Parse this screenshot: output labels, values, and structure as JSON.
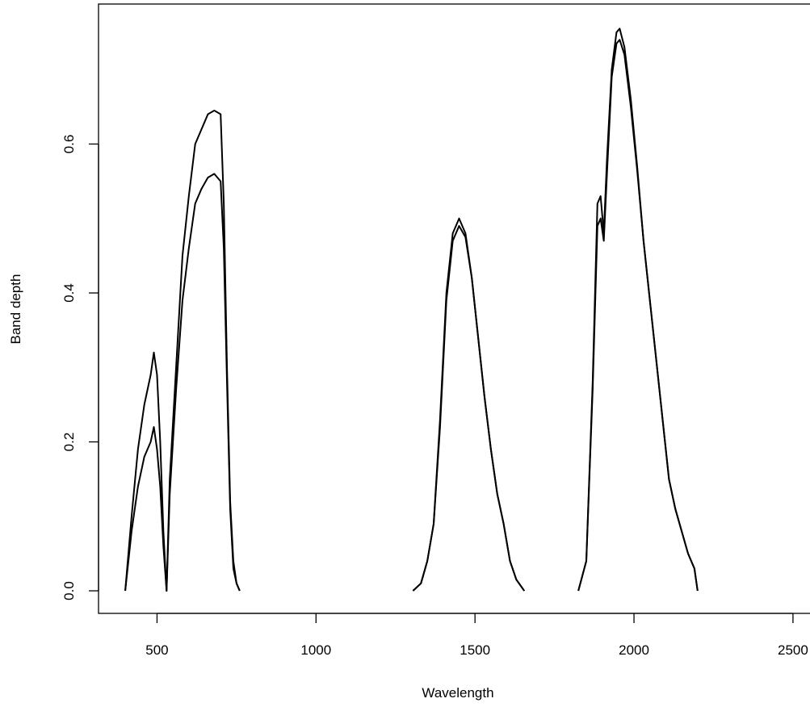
{
  "chart_data": {
    "type": "line",
    "x_label": "Wavelength",
    "y_label": "Band depth",
    "x": [
      400,
      420,
      440,
      460,
      480,
      490,
      500,
      510,
      520,
      530,
      540,
      560,
      580,
      600,
      620,
      640,
      660,
      680,
      700,
      710,
      720,
      730,
      740,
      750,
      760,
      null,
      1305,
      1330,
      1350,
      1370,
      1390,
      1410,
      1430,
      1450,
      1470,
      1490,
      1510,
      1530,
      1550,
      1570,
      1590,
      1610,
      1630,
      1655,
      null,
      1825,
      1850,
      1870,
      1885,
      1895,
      1905,
      1915,
      1930,
      1945,
      1955,
      1970,
      1990,
      2010,
      2030,
      2050,
      2070,
      2090,
      2110,
      2130,
      2150,
      2170,
      2190,
      2200
    ],
    "series": [
      {
        "color": "#000000",
        "values": [
          0,
          0.1,
          0.19,
          0.25,
          0.29,
          0.32,
          0.29,
          0.2,
          0.08,
          0,
          0.15,
          0.3,
          0.45,
          0.53,
          0.6,
          0.62,
          0.64,
          0.645,
          0.64,
          0.52,
          0.3,
          0.12,
          0.04,
          0.01,
          0,
          null,
          0,
          0.01,
          0.04,
          0.09,
          0.23,
          0.4,
          0.48,
          0.5,
          0.48,
          0.42,
          0.34,
          0.26,
          0.19,
          0.13,
          0.09,
          0.04,
          0.015,
          0,
          null,
          0,
          0.04,
          0.28,
          0.52,
          0.53,
          0.48,
          0.58,
          0.7,
          0.75,
          0.755,
          0.73,
          0.66,
          0.57,
          0.47,
          0.39,
          0.31,
          0.23,
          0.15,
          0.11,
          0.08,
          0.05,
          0.03,
          0
        ]
      },
      {
        "color": "#000000",
        "values": [
          0,
          0.08,
          0.14,
          0.18,
          0.2,
          0.22,
          0.19,
          0.14,
          0.06,
          0,
          0.13,
          0.27,
          0.39,
          0.46,
          0.52,
          0.54,
          0.555,
          0.56,
          0.55,
          0.46,
          0.28,
          0.11,
          0.03,
          0.01,
          0,
          null,
          0,
          0.01,
          0.04,
          0.09,
          0.22,
          0.39,
          0.47,
          0.49,
          0.475,
          0.42,
          0.34,
          0.26,
          0.19,
          0.13,
          0.09,
          0.04,
          0.015,
          0,
          null,
          0,
          0.04,
          0.27,
          0.49,
          0.5,
          0.47,
          0.56,
          0.69,
          0.735,
          0.74,
          0.72,
          0.65,
          0.565,
          0.47,
          0.39,
          0.31,
          0.23,
          0.15,
          0.11,
          0.08,
          0.05,
          0.03,
          0
        ]
      }
    ],
    "xlim": [
      316,
      2584
    ],
    "ylim": [
      -0.0303,
      0.788
    ],
    "xticks": [
      500,
      1000,
      1500,
      2000,
      2500
    ],
    "yticks": [
      {
        "value": 0,
        "label": "0.0"
      },
      {
        "value": 0.2,
        "label": "0.2"
      },
      {
        "value": 0.4,
        "label": "0.4"
      },
      {
        "value": 0.6,
        "label": "0.6"
      }
    ]
  }
}
